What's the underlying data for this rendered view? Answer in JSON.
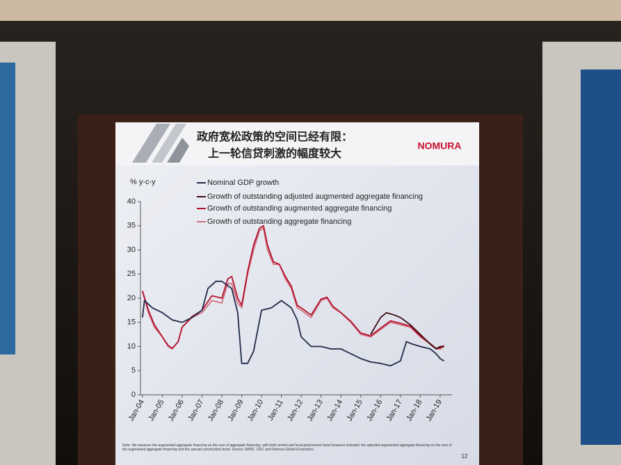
{
  "chart_data": {
    "type": "line",
    "title": "政府宽松政策的空间已经有限：",
    "subtitle": "上一轮信贷刺激的幅度较大",
    "brand": "NOMURA",
    "y_label": "% y-c-y",
    "note": "Note: We measure the augmented aggregate financing as the sum of aggregate financing, with both central and local government bond issuance included; the adjusted augmented aggregate financing as the sum of the augmented aggregate financing and the special construction bond. Source: WIND, CEIC and Nomura Global Economics.",
    "page_number": "12",
    "xlim": [
      2003.9,
      2019.6
    ],
    "xticks": [
      {
        "value": 2004,
        "label": "Jan-04"
      },
      {
        "value": 2005,
        "label": "Jan-05"
      },
      {
        "value": 2006,
        "label": "Jan-06"
      },
      {
        "value": 2007,
        "label": "Jan-07"
      },
      {
        "value": 2008,
        "label": "Jan-08"
      },
      {
        "value": 2009,
        "label": "Jan-09"
      },
      {
        "value": 2010,
        "label": "Jan-10"
      },
      {
        "value": 2011,
        "label": "Jan-11"
      },
      {
        "value": 2012,
        "label": "Jan-12"
      },
      {
        "value": 2013,
        "label": "Jan-13"
      },
      {
        "value": 2014,
        "label": "Jan-14"
      },
      {
        "value": 2015,
        "label": "Jan-15"
      },
      {
        "value": 2016,
        "label": "Jan-16"
      },
      {
        "value": 2017,
        "label": "Jan-17"
      },
      {
        "value": 2018,
        "label": "Jan-18"
      },
      {
        "value": 2019,
        "label": "Jan-19"
      }
    ],
    "ylim": [
      0,
      40
    ],
    "yticks": [
      0,
      5,
      10,
      15,
      20,
      25,
      30,
      35,
      40
    ],
    "series": [
      {
        "name": "Nominal GDP growth",
        "color": "#1f2a48",
        "x": [
          2004,
          2004.1,
          2004.5,
          2005,
          2005.5,
          2006,
          2006.5,
          2007,
          2007.3,
          2007.7,
          2008,
          2008.5,
          2008.8,
          2009,
          2009.3,
          2009.6,
          2010,
          2010.5,
          2011,
          2011.5,
          2011.8,
          2012,
          2012.5,
          2013,
          2013.5,
          2014,
          2014.5,
          2015,
          2015.5,
          2016,
          2016.5,
          2017,
          2017.3,
          2017.6,
          2018,
          2018.5,
          2018.8,
          2019,
          2019.2
        ],
        "values": [
          16,
          19.5,
          18,
          17,
          15.5,
          15,
          16,
          17.5,
          22,
          23.5,
          23.5,
          22,
          17,
          6.5,
          6.5,
          9,
          17.5,
          18,
          19.5,
          18,
          15.5,
          12,
          10,
          10,
          9.5,
          9.5,
          8.5,
          7.5,
          6.8,
          6.5,
          6,
          7,
          11,
          10.5,
          10,
          9.5,
          8.5,
          7.5,
          7
        ]
      },
      {
        "name": "Growth of outstanding adjusted augmented aggregate financing",
        "color": "#3a0c10",
        "x": [
          2015.5,
          2016,
          2016.3,
          2016.7,
          2017,
          2017.5,
          2018,
          2018.5,
          2018.8,
          2019,
          2019.2
        ],
        "values": [
          12.5,
          16,
          17,
          16.5,
          16,
          14.5,
          12.5,
          10.5,
          9.5,
          10,
          10
        ]
      },
      {
        "name": "Growth of outstanding augmented aggregate financing",
        "color": "#b3102c",
        "x": [
          2004,
          2004.3,
          2004.6,
          2005,
          2005.3,
          2005.5,
          2005.8,
          2006,
          2006.5,
          2007,
          2007.5,
          2008,
          2008.3,
          2008.5,
          2008.8,
          2009,
          2009.3,
          2009.6,
          2009.9,
          2010.1,
          2010.3,
          2010.6,
          2010.9,
          2011.2,
          2011.5,
          2011.8,
          2012,
          2012.5,
          2013,
          2013.3,
          2013.6,
          2014,
          2014.5,
          2015,
          2015.5,
          2016,
          2016.5,
          2017,
          2017.5,
          2018,
          2018.5,
          2018.8,
          2019,
          2019.2
        ],
        "values": [
          21.5,
          17.5,
          14.5,
          12,
          10.2,
          9.6,
          11,
          14,
          16.2,
          17.5,
          20.5,
          20,
          24,
          24.5,
          20,
          18.5,
          25.5,
          31,
          34.5,
          35,
          31,
          27.5,
          27,
          24.5,
          22.5,
          18.5,
          18,
          16.5,
          19.8,
          20.2,
          18.3,
          17,
          15.2,
          12.8,
          12.2,
          13.8,
          15.3,
          14.8,
          14.2,
          12.2,
          10.6,
          9.6,
          9.7,
          10.2
        ]
      },
      {
        "name": "Growth of outstanding aggregate financing",
        "color": "#d2707e",
        "x": [
          2004,
          2004.3,
          2004.6,
          2005,
          2005.3,
          2005.5,
          2005.8,
          2006,
          2006.5,
          2007,
          2007.5,
          2008,
          2008.3,
          2008.5,
          2008.8,
          2009,
          2009.3,
          2009.6,
          2009.9,
          2010.1,
          2010.3,
          2010.6,
          2010.9,
          2011.2,
          2011.5,
          2011.8,
          2012,
          2012.5,
          2013,
          2013.3,
          2013.6,
          2014,
          2014.5,
          2015,
          2015.5,
          2016,
          2016.5,
          2017,
          2017.5,
          2018,
          2018.5,
          2018.8,
          2019,
          2019.2
        ],
        "values": [
          21.5,
          17,
          14,
          12,
          10,
          9.5,
          11,
          14,
          16,
          17,
          19.5,
          19,
          23,
          23,
          19,
          18,
          25,
          30,
          34,
          34.5,
          30,
          27,
          27,
          24,
          22,
          18,
          17.5,
          16,
          19.5,
          20,
          18,
          17,
          15,
          12.5,
          12,
          13.5,
          15,
          14.5,
          14,
          12,
          10.5,
          9.5,
          9.5,
          10
        ]
      }
    ]
  }
}
